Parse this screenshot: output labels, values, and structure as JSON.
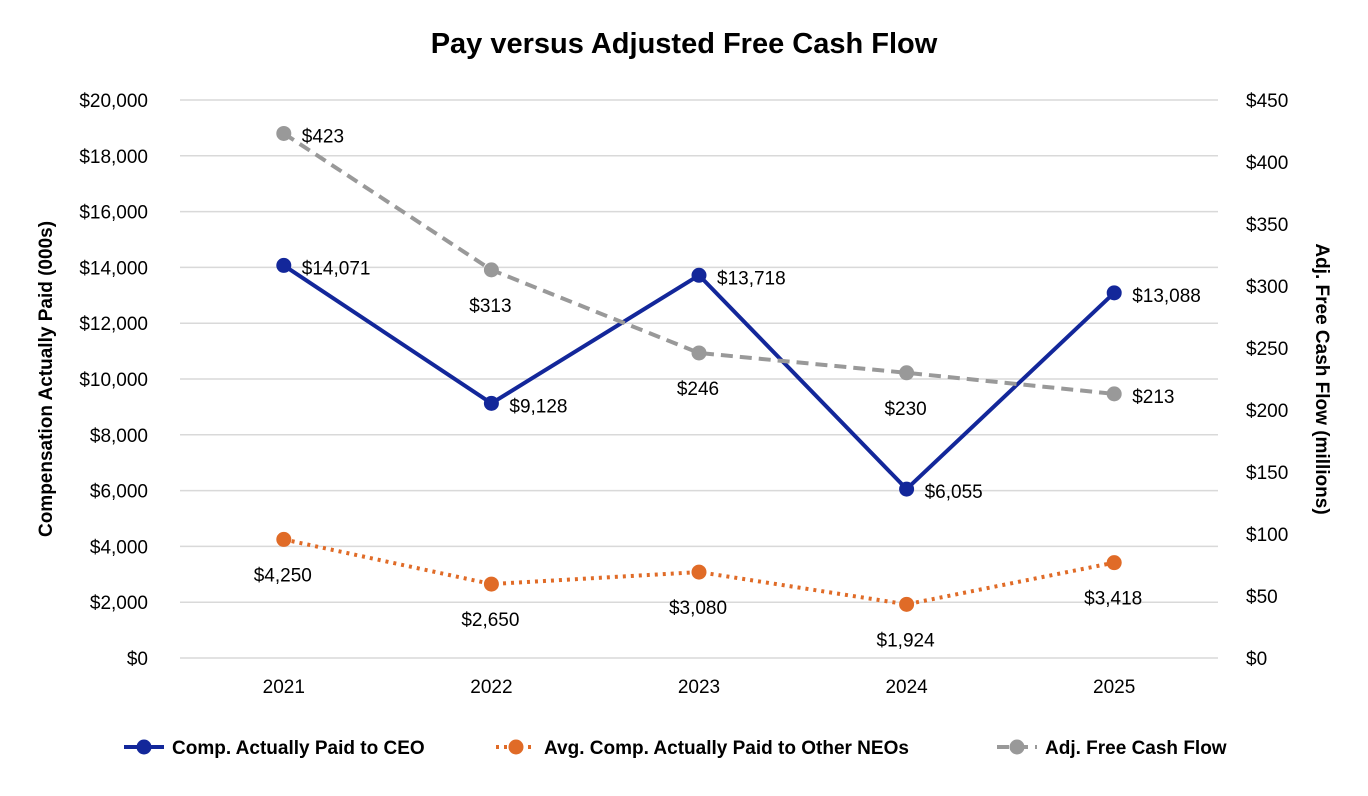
{
  "chart_data": {
    "type": "line",
    "title": "Pay versus Adjusted Free Cash Flow",
    "categories": [
      "2021",
      "2022",
      "2023",
      "2024",
      "2025"
    ],
    "y_left": {
      "label": "Compensation Actually Paid (000s)",
      "range": [
        0,
        20000
      ],
      "step": 2000,
      "tick_labels": [
        "$0",
        "$2,000",
        "$4,000",
        "$6,000",
        "$8,000",
        "$10,000",
        "$12,000",
        "$14,000",
        "$16,000",
        "$18,000",
        "$20,000"
      ]
    },
    "y_right": {
      "label": "Adj. Free Cash Flow (millions)",
      "range": [
        0,
        450
      ],
      "step": 50,
      "tick_labels": [
        "$0",
        "$50",
        "$100",
        "$150",
        "$200",
        "$250",
        "$300",
        "$350",
        "$400",
        "$450"
      ]
    },
    "grid": true,
    "legend_position": "bottom",
    "series": [
      {
        "key": "ceo",
        "name": "Comp. Actually Paid to CEO",
        "axis": "left",
        "values": [
          14071,
          9128,
          13718,
          6055,
          13088
        ],
        "labels": [
          "$14,071",
          "$9,128",
          "$13,718",
          "$6,055",
          "$13,088"
        ],
        "label_positions": [
          "right",
          "right",
          "right",
          "right",
          "right"
        ],
        "color": "#13279a",
        "line_style": "solid"
      },
      {
        "key": "neo",
        "name": "Avg. Comp. Actually Paid to Other NEOs",
        "axis": "left",
        "values": [
          4250,
          2650,
          3080,
          1924,
          3418
        ],
        "labels": [
          "$4,250",
          "$2,650",
          "$3,080",
          "$1,924",
          "$3,418"
        ],
        "label_positions": [
          "below",
          "below",
          "below",
          "below",
          "below"
        ],
        "color": "#e06b27",
        "line_style": "dotted"
      },
      {
        "key": "fcf",
        "name": "Adj. Free Cash Flow",
        "axis": "right",
        "values": [
          423,
          313,
          246,
          230,
          213
        ],
        "labels": [
          "$423",
          "$313",
          "$246",
          "$230",
          "$213"
        ],
        "label_positions": [
          "right",
          "below",
          "below",
          "below",
          "right"
        ],
        "color": "#999999",
        "line_style": "dashed"
      }
    ]
  }
}
